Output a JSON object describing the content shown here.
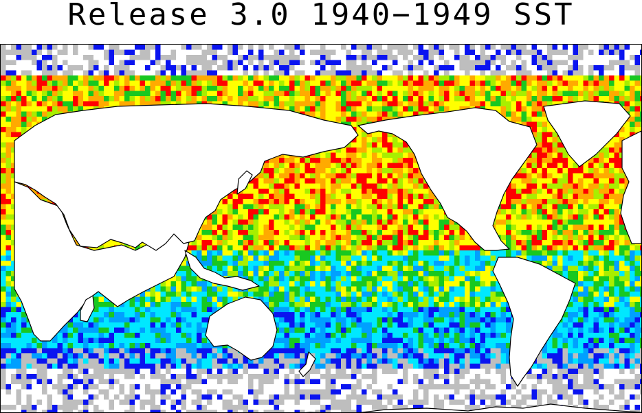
{
  "title": "Release 3.0 1940−1949 SST",
  "map": {
    "projection": "equirectangular",
    "lon_range": [
      20,
      380
    ],
    "lat_range": [
      -90,
      90
    ],
    "grid_resolution_deg": 2,
    "land_color": "#ffffff",
    "coastline_color": "#000000",
    "palette": [
      "#ffffff",
      "#bebebe",
      "#0a14f0",
      "#00a0ff",
      "#00e8ff",
      "#18c820",
      "#a8ee00",
      "#ffff00",
      "#ffaa00",
      "#ff0000"
    ]
  }
}
